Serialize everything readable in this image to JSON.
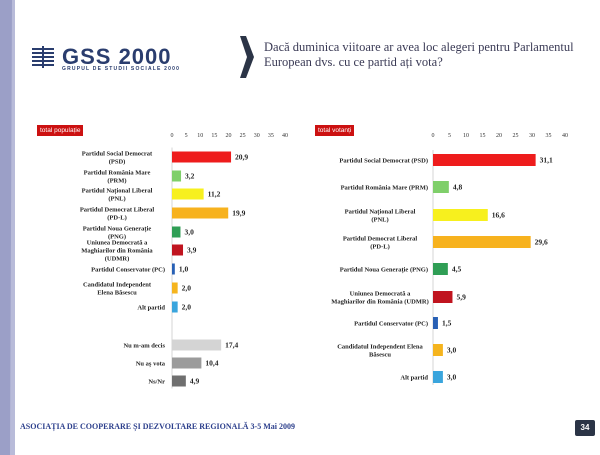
{
  "logo": {
    "name": "GSS 2000",
    "subtitle": "GRUPUL DE STUDII SOCIALE 2000"
  },
  "question": "Dacă duminica viitoare ar avea loc alegeri pentru Parlamentul European dvs. cu ce partid ați vota?",
  "footer": "ASOCIAȚIA DE COOPERARE ȘI DEZVOLTARE REGIONALĂ   3-5 Mai 2009",
  "page_number": "34",
  "colors": {
    "left_bar": "#9b9fc7",
    "title_text": "#3a3a55",
    "footer_text": "#2c3f8c",
    "label_red": "#cc1111"
  },
  "chart_data": [
    {
      "type": "bar",
      "orientation": "horizontal",
      "title": "total populație",
      "xlim": [
        0,
        40
      ],
      "ticks": [
        0,
        5,
        10,
        15,
        20,
        25,
        30,
        35,
        40
      ],
      "grid": false,
      "categories": [
        "Partidul Social Democrat (PSD)",
        "Partidul România Mare (PRM)",
        "Partidul Național Liberal (PNL)",
        "Partidul Democrat Liberal (PD-L)",
        "Partidul Noua Generație (PNG)",
        "Uniunea Democrată a Maghiarilor din România (UDMR)",
        "Partidul Conservator (PC)",
        "Candidatul Independent Elena Băsescu",
        "Alt partid",
        "Nu m-am decis",
        "Nu aș vota",
        "Ns/Nr"
      ],
      "values": [
        20.9,
        3.2,
        11.2,
        19.9,
        3.0,
        3.9,
        1.0,
        2.0,
        2.0,
        17.4,
        10.4,
        4.9
      ],
      "labels": [
        "20,9",
        "3,2",
        "11,2",
        "19,9",
        "3,0",
        "3,9",
        "1,0",
        "2,0",
        "2,0",
        "17,4",
        "10,4",
        "4,9"
      ],
      "bar_colors": [
        "#ee1c1c",
        "#7fcf6a",
        "#f7f01e",
        "#f7b21e",
        "#2f9e55",
        "#c0141f",
        "#2860b5",
        "#f5b41e",
        "#3aa5dd",
        "#d4d4d4",
        "#9b9b9b",
        "#6f6f6f"
      ]
    },
    {
      "type": "bar",
      "orientation": "horizontal",
      "title": "total votanți",
      "xlim": [
        0,
        40
      ],
      "ticks": [
        0,
        5,
        10,
        15,
        20,
        25,
        30,
        35,
        40
      ],
      "grid": false,
      "categories": [
        "Partidul Social Democrat (PSD)",
        "Partidul România Mare (PRM)",
        "Partidul Național Liberal (PNL)",
        "Partidul Democrat Liberal (PD-L)",
        "Partidul Noua Generație (PNG)",
        "Uniunea Democrată a Maghiarilor din România (UDMR)",
        "Partidul Conservator (PC)",
        "Candidatul Independent Elena Băsescu",
        "Alt partid"
      ],
      "values": [
        31.1,
        4.8,
        16.6,
        29.6,
        4.5,
        5.9,
        1.5,
        3.0,
        3.0
      ],
      "labels": [
        "31,1",
        "4,8",
        "16,6",
        "29,6",
        "4,5",
        "5,9",
        "1,5",
        "3,0",
        "3,0"
      ],
      "bar_colors": [
        "#ee1c1c",
        "#7fcf6a",
        "#f7f01e",
        "#f7b21e",
        "#2f9e55",
        "#c0141f",
        "#2860b5",
        "#f5b41e",
        "#3aa5dd"
      ]
    }
  ]
}
